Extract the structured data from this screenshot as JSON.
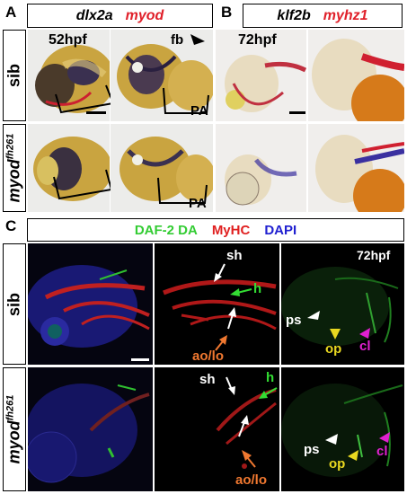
{
  "panels": {
    "A": {
      "letter": "A",
      "genes": {
        "g1": "dlx2a",
        "g2": "myod"
      },
      "stage": "52hpf",
      "fb_label": "fb",
      "pa_label_1": "PA",
      "pa_label_2": "PA"
    },
    "B": {
      "letter": "B",
      "genes": {
        "g1": "klf2b",
        "g2": "myhz1"
      },
      "stage": "72hpf"
    },
    "C": {
      "letter": "C",
      "stains": {
        "s1": "DAF-2 DA",
        "s2": "MyHC",
        "s3": "DAPI"
      },
      "stage": "72hpf",
      "labels_top": {
        "sh": "sh",
        "h": "h",
        "aolo": "ao/lo",
        "ps": "ps",
        "op": "op",
        "cl": "cl"
      },
      "labels_bottom": {
        "sh": "sh",
        "h": "h",
        "aolo": "ao/lo",
        "ps": "ps",
        "op": "op",
        "cl": "cl"
      }
    }
  },
  "rows": {
    "sib_label": "sib",
    "mutant_gene": "myod",
    "mutant_allele": "fh261"
  },
  "colors": {
    "myod_red": "#e0202a",
    "daf_green": "#33cc33",
    "myhc_red": "#e02020",
    "dapi_blue": "#2020d0",
    "arrow_green": "#33dd33",
    "arrow_orange": "#f07830",
    "arrow_yellow": "#e8d820",
    "arrow_magenta": "#e020d0"
  }
}
